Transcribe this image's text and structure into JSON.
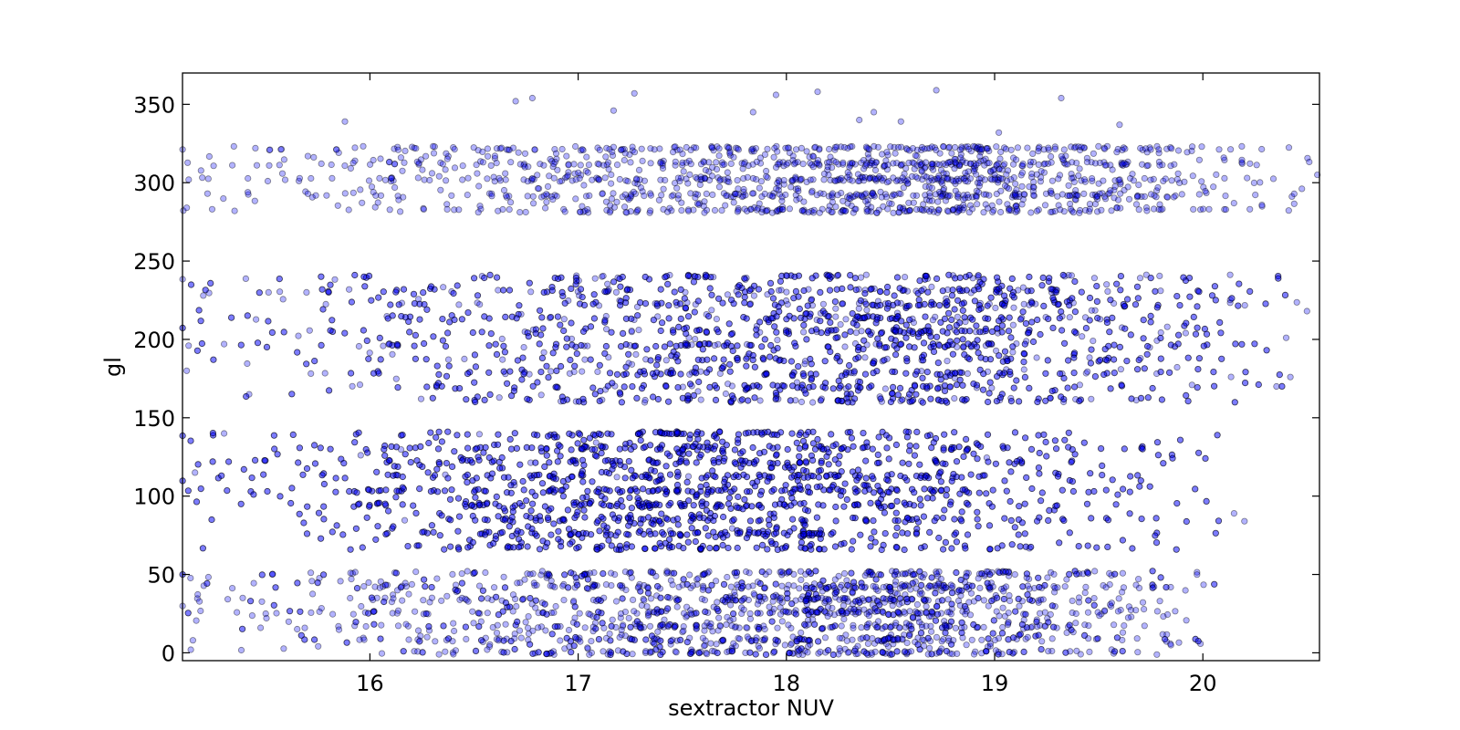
{
  "chart_data": {
    "type": "scatter",
    "title": "",
    "xlabel": "sextractor NUV",
    "ylabel": "gl",
    "xlim": [
      15.1,
      20.56
    ],
    "ylim": [
      -5,
      370
    ],
    "x_ticks": [
      16,
      17,
      18,
      19,
      20
    ],
    "y_ticks": [
      0,
      50,
      100,
      150,
      200,
      250,
      300,
      350
    ],
    "grid": false,
    "legend": "none",
    "marker_fill": "#0000ff",
    "marker_edge": "#000000",
    "marker_alpha": 0.3,
    "series": [
      {
        "bands": [
          {
            "y": [
              282,
              322
            ],
            "x": [
              15.1,
              20.56
            ],
            "peak": 18.9,
            "n": 1400
          },
          {
            "y": [
              161,
              240
            ],
            "x": [
              15.1,
              20.5
            ],
            "peak": 18.7,
            "n": 2600
          },
          {
            "y": [
              67,
              140
            ],
            "x": [
              15.1,
              20.2
            ],
            "peak": 17.6,
            "n": 2900
          },
          {
            "y": [
              0,
              51
            ],
            "x": [
              15.1,
              20.1
            ],
            "peak": 18.6,
            "n": 1900
          }
        ],
        "outliers": [
          [
            15.45,
            322
          ],
          [
            15.52,
            321
          ],
          [
            15.88,
            339
          ],
          [
            16.7,
            352
          ],
          [
            16.78,
            354
          ],
          [
            17.27,
            357
          ],
          [
            17.84,
            345
          ],
          [
            17.95,
            356
          ],
          [
            18.15,
            358
          ],
          [
            18.35,
            340
          ],
          [
            18.72,
            359
          ],
          [
            19.32,
            354
          ],
          [
            19.6,
            337
          ],
          [
            19.02,
            332
          ],
          [
            18.55,
            339
          ],
          [
            18.42,
            345
          ],
          [
            17.17,
            346
          ],
          [
            15.12,
            284
          ],
          [
            15.22,
            293
          ],
          [
            15.35,
            282
          ],
          [
            15.12,
            180
          ],
          [
            15.3,
            197
          ],
          [
            15.42,
            165
          ],
          [
            15.2,
            228
          ],
          [
            15.16,
            115
          ],
          [
            15.3,
            140
          ],
          [
            20.42,
            176
          ],
          [
            20.5,
            218
          ],
          [
            20.4,
            201
          ],
          [
            20.2,
            84
          ],
          [
            20.15,
            89
          ],
          [
            15.15,
            8
          ],
          [
            15.14,
            2
          ],
          [
            20.55,
            305
          ]
        ]
      }
    ]
  }
}
